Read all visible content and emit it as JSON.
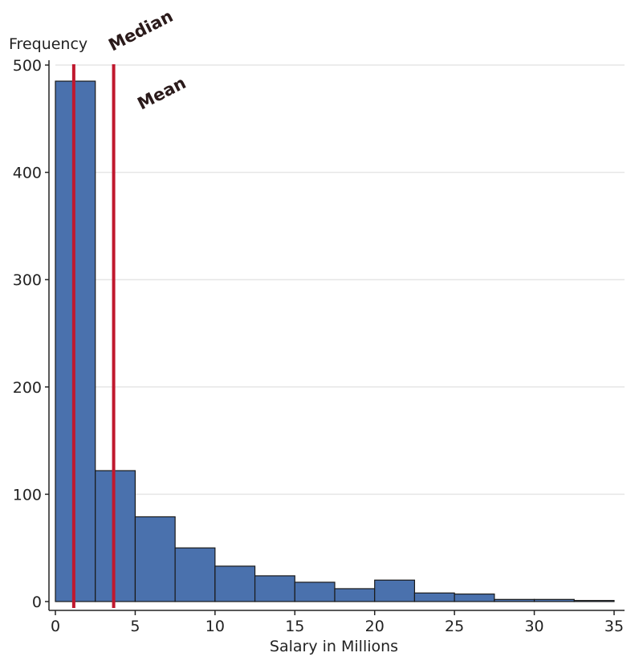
{
  "chart_data": {
    "type": "bar",
    "subtype": "histogram",
    "xlabel": "Salary in Millions",
    "ylabel": "Frequency",
    "xlim": [
      0,
      35
    ],
    "ylim": [
      0,
      500
    ],
    "xticks": [
      0,
      5,
      10,
      15,
      20,
      25,
      30,
      35
    ],
    "yticks": [
      0,
      100,
      200,
      300,
      400,
      500
    ],
    "grid": true,
    "bin_width": 2.5,
    "bins": [
      {
        "start": 0.0,
        "end": 2.5,
        "count": 485
      },
      {
        "start": 2.5,
        "end": 5.0,
        "count": 122
      },
      {
        "start": 5.0,
        "end": 7.5,
        "count": 79
      },
      {
        "start": 7.5,
        "end": 10.0,
        "count": 50
      },
      {
        "start": 10.0,
        "end": 12.5,
        "count": 33
      },
      {
        "start": 12.5,
        "end": 15.0,
        "count": 24
      },
      {
        "start": 15.0,
        "end": 17.5,
        "count": 18
      },
      {
        "start": 17.5,
        "end": 20.0,
        "count": 12
      },
      {
        "start": 20.0,
        "end": 22.5,
        "count": 20
      },
      {
        "start": 22.5,
        "end": 25.0,
        "count": 8
      },
      {
        "start": 25.0,
        "end": 27.5,
        "count": 7
      },
      {
        "start": 27.5,
        "end": 30.0,
        "count": 2
      },
      {
        "start": 30.0,
        "end": 32.5,
        "count": 2
      },
      {
        "start": 32.5,
        "end": 35.0,
        "count": 1
      }
    ],
    "reference_lines": [
      {
        "label": "Median",
        "x": 1.15
      },
      {
        "label": "Mean",
        "x": 3.65
      }
    ],
    "colors": {
      "bar_fill": "#4a71ad",
      "bar_edge": "#1a1a1a",
      "reference_line": "#c0182e",
      "grid": "#e6e6e6"
    }
  }
}
